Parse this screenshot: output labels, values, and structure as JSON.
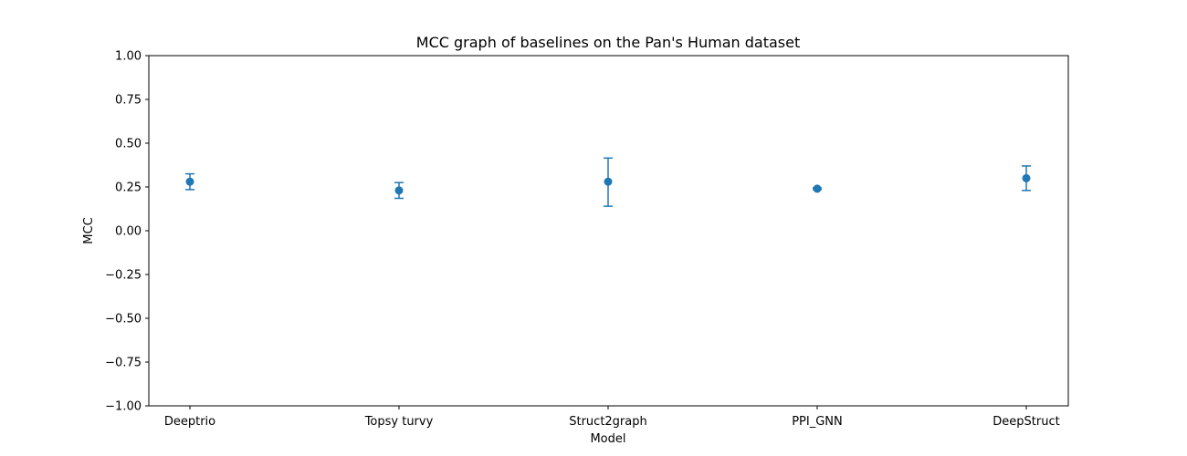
{
  "chart_data": {
    "type": "scatter",
    "title": "MCC graph of baselines on the Pan's Human dataset",
    "xlabel": "Model",
    "ylabel": "MCC",
    "categories": [
      "Deeptrio",
      "Topsy turvy",
      "Struct2graph",
      "PPI_GNN",
      "DeepStruct"
    ],
    "series": [
      {
        "values": [
          0.28,
          0.23,
          0.28,
          0.24,
          0.3
        ],
        "error_low": [
          0.235,
          0.185,
          0.14,
          0.235,
          0.23
        ],
        "error_high": [
          0.325,
          0.275,
          0.415,
          0.245,
          0.37
        ],
        "color": "#1f77b4"
      }
    ],
    "ylim": [
      -1.0,
      1.0
    ],
    "yticks": [
      "−1.00",
      "−0.75",
      "−0.50",
      "−0.25",
      "0.00",
      "0.25",
      "0.50",
      "0.75",
      "1.00"
    ],
    "grid": false,
    "legend": "none"
  }
}
